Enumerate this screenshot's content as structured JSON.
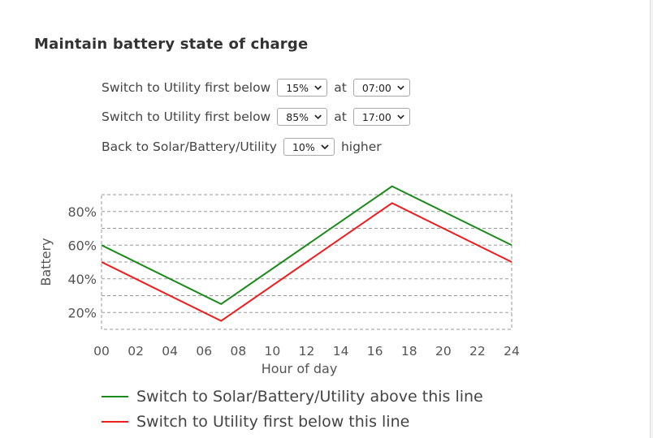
{
  "section": {
    "title": "Maintain battery state of charge"
  },
  "rules": [
    {
      "label": "Switch to Utility first below",
      "value": "15%",
      "at_label": "at",
      "time": "07:00"
    },
    {
      "label": "Switch to Utility first below",
      "value": "85%",
      "at_label": "at",
      "time": "17:00"
    }
  ],
  "back_rule": {
    "label": "Back to Solar/Battery/Utility",
    "value": "10%",
    "suffix": "higher"
  },
  "colors": {
    "green": "#1a8a1a",
    "red": "#ee1c1c",
    "grid": "#9a9a9a"
  },
  "chart_data": {
    "type": "line",
    "ylabel": "Battery",
    "xlabel": "Hour of day",
    "x_ticks": [
      "00",
      "02",
      "04",
      "06",
      "08",
      "10",
      "12",
      "14",
      "16",
      "18",
      "20",
      "22",
      "24"
    ],
    "y_ticks": [
      "20%",
      "40%",
      "60%",
      "80%"
    ],
    "xlim": [
      0,
      24
    ],
    "ylim": [
      10,
      90
    ],
    "grid": true,
    "series": [
      {
        "name": "Switch to Solar/Battery/Utility above this line",
        "color": "#1a8a1a",
        "x": [
          0,
          7,
          17,
          24
        ],
        "y": [
          60,
          25,
          95,
          60
        ]
      },
      {
        "name": "Switch to Utility first below this line",
        "color": "#ee1c1c",
        "x": [
          0,
          7,
          17,
          24
        ],
        "y": [
          50,
          15,
          85,
          50
        ]
      }
    ]
  }
}
